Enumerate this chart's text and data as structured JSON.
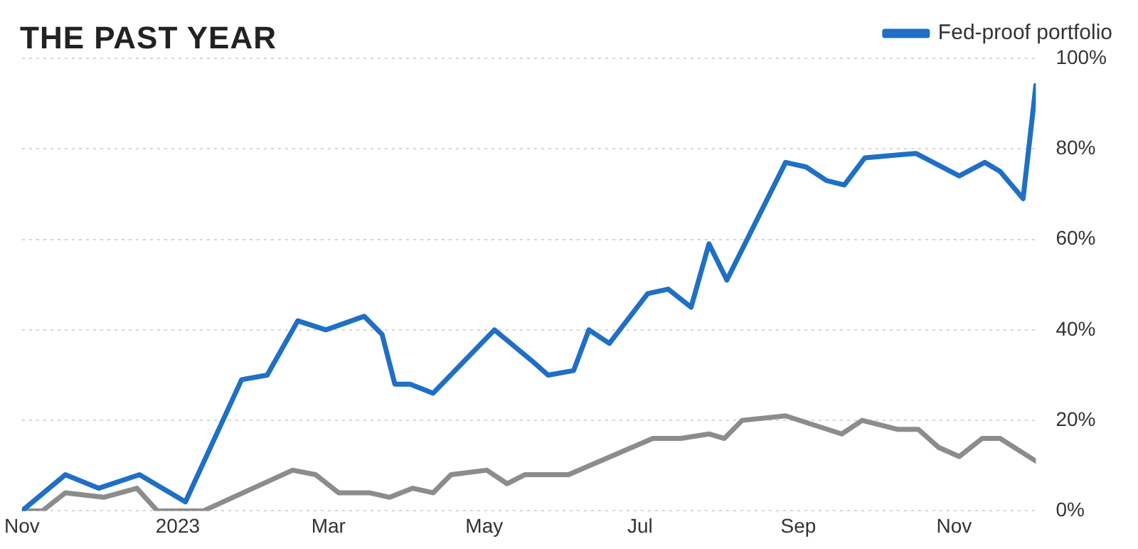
{
  "chart_data": {
    "type": "line",
    "title": "THE PAST YEAR",
    "xlim": [
      "2022-11-01",
      "2023-12-03"
    ],
    "xticks": [
      {
        "value": "2022-11-01",
        "label": "Nov"
      },
      {
        "value": "2023-01-01",
        "label": "2023"
      },
      {
        "value": "2023-03-01",
        "label": "Mar"
      },
      {
        "value": "2023-05-01",
        "label": "May"
      },
      {
        "value": "2023-07-01",
        "label": "Jul"
      },
      {
        "value": "2023-09-01",
        "label": "Sep"
      },
      {
        "value": "2023-11-01",
        "label": "Nov"
      }
    ],
    "ylim": [
      0,
      100
    ],
    "yticks": [
      {
        "value": 0,
        "label": "0%"
      },
      {
        "value": 20,
        "label": "20%"
      },
      {
        "value": 40,
        "label": "40%"
      },
      {
        "value": 60,
        "label": "60%"
      },
      {
        "value": 80,
        "label": "80%"
      },
      {
        "value": 100,
        "label": "100%"
      }
    ],
    "grid": "y",
    "legend": "top right",
    "marker": "none",
    "line_style": "solid",
    "series": [
      {
        "name": "Fed-proof portfolio",
        "color": "#1f6fc5",
        "x": [
          "2022-11-01",
          "2022-11-18",
          "2022-12-01",
          "2022-12-17",
          "2023-01-04",
          "2023-01-26",
          "2023-02-05",
          "2023-02-17",
          "2023-02-28",
          "2023-03-15",
          "2023-03-22",
          "2023-03-27",
          "2023-04-02",
          "2023-04-11",
          "2023-05-05",
          "2023-05-20",
          "2023-05-26",
          "2023-06-05",
          "2023-06-11",
          "2023-06-19",
          "2023-07-04",
          "2023-07-12",
          "2023-07-21",
          "2023-07-28",
          "2023-08-04",
          "2023-08-27",
          "2023-09-04",
          "2023-09-12",
          "2023-09-19",
          "2023-09-27",
          "2023-10-17",
          "2023-11-03",
          "2023-11-13",
          "2023-11-19",
          "2023-11-28",
          "2023-12-03"
        ],
        "values": [
          0,
          8,
          5,
          8,
          2,
          29,
          30,
          42,
          40,
          43,
          39,
          28,
          28,
          26,
          40,
          33,
          30,
          31,
          40,
          37,
          48,
          49,
          45,
          59,
          51,
          77,
          76,
          73,
          72,
          78,
          79,
          74,
          77,
          75,
          69,
          94
        ]
      },
      {
        "color": "#8c8c8c",
        "x": [
          "2022-11-01",
          "2022-11-09",
          "2022-11-18",
          "2022-12-03",
          "2022-12-16",
          "2022-12-24",
          "2023-01-11",
          "2023-02-15",
          "2023-02-24",
          "2023-03-05",
          "2023-03-17",
          "2023-03-25",
          "2023-04-03",
          "2023-04-11",
          "2023-04-18",
          "2023-05-02",
          "2023-05-10",
          "2023-05-17",
          "2023-06-03",
          "2023-07-06",
          "2023-07-17",
          "2023-07-28",
          "2023-08-03",
          "2023-08-10",
          "2023-08-27",
          "2023-09-18",
          "2023-09-26",
          "2023-10-10",
          "2023-10-18",
          "2023-10-26",
          "2023-11-03",
          "2023-11-12",
          "2023-11-19",
          "2023-12-03"
        ],
        "values": [
          0,
          0,
          4,
          3,
          5,
          0,
          0,
          9,
          8,
          4,
          4,
          3,
          5,
          4,
          8,
          9,
          6,
          8,
          8,
          16,
          16,
          17,
          16,
          20,
          21,
          17,
          20,
          18,
          18,
          14,
          12,
          16,
          16,
          11
        ]
      }
    ]
  }
}
